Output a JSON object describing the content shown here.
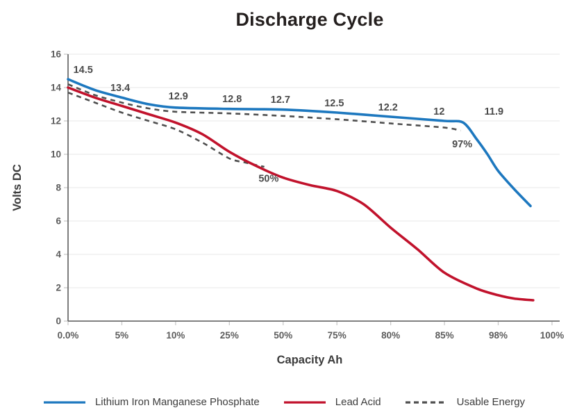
{
  "title": "Discharge Cycle",
  "colors": {
    "lithium_line": "#1d78bf",
    "lead_acid_line": "#c1122c",
    "usable_energy_line": "#4f4f4f",
    "gridline": "#e7e7e7",
    "axis_line": "#6e6e6e",
    "tick_label": "#5c5c5c",
    "data_label": "#4a4a4a",
    "title_text": "#241f1e"
  },
  "chart_data": {
    "type": "line",
    "title": "Discharge Cycle",
    "xlabel": "Capacity Ah",
    "ylabel": "Volts DC",
    "ylim": [
      0,
      16
    ],
    "y_ticks": [
      "0",
      "2",
      "4",
      "6",
      "8",
      "10",
      "12",
      "14",
      "16"
    ],
    "categories": [
      "0.0%",
      "5%",
      "10%",
      "25%",
      "50%",
      "75%",
      "80%",
      "85%",
      "98%",
      "100%"
    ],
    "grid": "horizontal-only",
    "legend_position": "bottom-center",
    "series": [
      {
        "name": "Lithium Iron Manganese Phosphate",
        "style": "solid",
        "color": "#1d78bf",
        "values": [
          14.5,
          13.4,
          12.9,
          12.8,
          12.7,
          12.5,
          12.2,
          12,
          11.9,
          6.9
        ],
        "curve_points": [
          [
            0,
            14.5
          ],
          [
            0.5,
            13.85
          ],
          [
            1,
            13.4
          ],
          [
            1.5,
            13.0
          ],
          [
            2,
            12.8
          ],
          [
            3,
            12.72
          ],
          [
            4,
            12.68
          ],
          [
            5,
            12.5
          ],
          [
            6,
            12.25
          ],
          [
            7,
            12.0
          ],
          [
            7.35,
            11.9
          ],
          [
            7.6,
            10.9
          ],
          [
            7.8,
            10.0
          ],
          [
            8,
            9.0
          ],
          [
            8.3,
            7.9
          ],
          [
            8.6,
            6.9
          ]
        ]
      },
      {
        "name": "Lead Acid",
        "style": "solid",
        "color": "#c1122c",
        "values": [
          14,
          12.9,
          11.9,
          10.1,
          8.6,
          7.9,
          5.6,
          2.9,
          1.5,
          1.2
        ],
        "curve_points": [
          [
            0,
            14.0
          ],
          [
            0.5,
            13.4
          ],
          [
            1,
            12.9
          ],
          [
            1.5,
            12.4
          ],
          [
            2,
            11.9
          ],
          [
            2.5,
            11.2
          ],
          [
            3,
            10.15
          ],
          [
            3.5,
            9.3
          ],
          [
            4,
            8.6
          ],
          [
            4.5,
            8.15
          ],
          [
            5,
            7.8
          ],
          [
            5.5,
            7.0
          ],
          [
            6,
            5.6
          ],
          [
            6.5,
            4.3
          ],
          [
            7,
            2.9
          ],
          [
            7.6,
            1.95
          ],
          [
            8,
            1.55
          ],
          [
            8.3,
            1.35
          ],
          [
            8.65,
            1.25
          ]
        ]
      },
      {
        "name": "Usable Energy",
        "style": "dashed",
        "color": "#4f4f4f",
        "branches": [
          {
            "follows": "Lithium Iron Manganese Phosphate",
            "end_annotation": "97%",
            "curve_points": [
              [
                0,
                14.2
              ],
              [
                0.5,
                13.55
              ],
              [
                1,
                13.1
              ],
              [
                1.5,
                12.75
              ],
              [
                2,
                12.55
              ],
              [
                3,
                12.45
              ],
              [
                4,
                12.3
              ],
              [
                5,
                12.1
              ],
              [
                6,
                11.85
              ],
              [
                7,
                11.6
              ],
              [
                7.3,
                11.42
              ]
            ]
          },
          {
            "follows": "Lead Acid",
            "end_annotation": "50%",
            "curve_points": [
              [
                0,
                13.7
              ],
              [
                0.5,
                13.1
              ],
              [
                1,
                12.5
              ],
              [
                1.5,
                12.0
              ],
              [
                2,
                11.5
              ],
              [
                2.5,
                10.7
              ],
              [
                3,
                9.75
              ],
              [
                3.3,
                9.5
              ],
              [
                3.65,
                9.25
              ]
            ]
          }
        ]
      }
    ],
    "data_labels": [
      {
        "text": "14.5",
        "i": 0.28,
        "v": 14.55
      },
      {
        "text": "13.4",
        "i": 0.97,
        "v": 13.45
      },
      {
        "text": "12.9",
        "i": 2.05,
        "v": 12.95
      },
      {
        "text": "12.8",
        "i": 3.05,
        "v": 12.8
      },
      {
        "text": "12.7",
        "i": 3.95,
        "v": 12.75
      },
      {
        "text": "12.5",
        "i": 4.95,
        "v": 12.55
      },
      {
        "text": "12.2",
        "i": 5.95,
        "v": 12.3
      },
      {
        "text": "12",
        "i": 6.9,
        "v": 12.05
      },
      {
        "text": "11.9",
        "i": 7.92,
        "v": 12.05
      }
    ],
    "annotations": [
      {
        "text": "97%",
        "i": 7.33,
        "v": 10.42
      },
      {
        "text": "50%",
        "i": 3.73,
        "v": 8.35
      }
    ]
  },
  "legend": {
    "items": [
      {
        "label": "Lithium Iron Manganese Phosphate",
        "color": "#1d78bf",
        "style": "solid"
      },
      {
        "label": "Lead Acid",
        "color": "#c1122c",
        "style": "solid"
      },
      {
        "label": "Usable Energy",
        "color": "#4f4f4f",
        "style": "dashed"
      }
    ]
  }
}
